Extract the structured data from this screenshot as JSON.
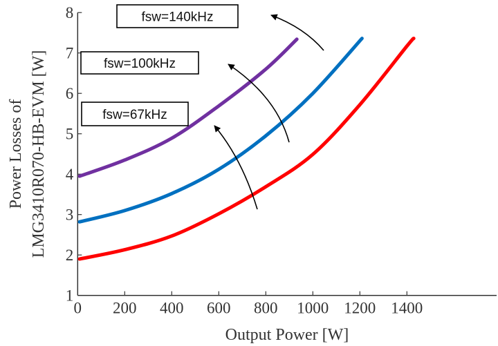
{
  "chart_data": {
    "type": "line",
    "title": "",
    "xlabel": "Output Power [W]",
    "ylabel": [
      "Power Losses of",
      "LMG3410R070-HB-EVM [W]"
    ],
    "xlim": [
      0,
      1500
    ],
    "ylim": [
      1,
      8
    ],
    "xticks": [
      0,
      200,
      400,
      600,
      800,
      1000,
      1200,
      1400
    ],
    "yticks": [
      1,
      2,
      3,
      4,
      5,
      6,
      7,
      8
    ],
    "grid": false,
    "series": [
      {
        "color": "#ff0000",
        "x": [
          8,
          200,
          400,
          600,
          800,
          1000,
          1200,
          1400,
          1429
        ],
        "y": [
          1.9,
          2.13,
          2.47,
          3.02,
          3.69,
          4.49,
          5.72,
          7.17,
          7.36
        ]
      },
      {
        "color": "#0070c0",
        "x": [
          8,
          200,
          400,
          600,
          800,
          1000,
          1209
        ],
        "y": [
          2.82,
          3.1,
          3.52,
          4.12,
          4.95,
          6.0,
          7.36
        ]
      },
      {
        "color": "#7030a0",
        "x": [
          8,
          200,
          400,
          600,
          800,
          932
        ],
        "y": [
          3.95,
          4.35,
          4.89,
          5.69,
          6.6,
          7.34
        ]
      }
    ],
    "annotations": [
      {
        "text": "fsw=67kHz"
      },
      {
        "text": "fsw=100kHz"
      },
      {
        "text": "fsw=140kHz"
      }
    ]
  }
}
